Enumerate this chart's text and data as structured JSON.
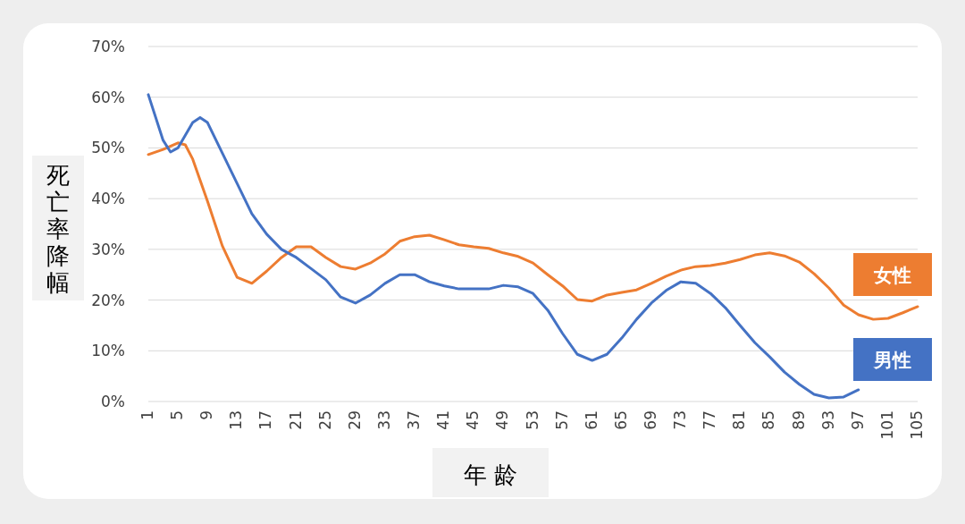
{
  "chart_data": {
    "type": "line",
    "xlabel": "年 龄",
    "ylabel": "死亡率降幅",
    "xlim": [
      1,
      105
    ],
    "xticks": [
      1,
      5,
      9,
      13,
      17,
      21,
      25,
      29,
      33,
      37,
      41,
      45,
      49,
      53,
      57,
      61,
      65,
      69,
      73,
      77,
      81,
      85,
      89,
      93,
      97,
      101,
      105
    ],
    "ylim": [
      0,
      70
    ],
    "yticks": [
      {
        "value": 0,
        "label": "0%"
      },
      {
        "value": 10,
        "label": "10%"
      },
      {
        "value": 20,
        "label": "20%"
      },
      {
        "value": 30,
        "label": "30%"
      },
      {
        "value": 40,
        "label": "40%"
      },
      {
        "value": 50,
        "label": "50%"
      },
      {
        "value": 60,
        "label": "60%"
      },
      {
        "value": 70,
        "label": "70%"
      }
    ],
    "grid": "y",
    "legend": "right",
    "marker": "none",
    "line_style": "solid",
    "series": [
      {
        "name": "女性",
        "color": "#ed7d31",
        "x": [
          1,
          3,
          5,
          6,
          7,
          9,
          11,
          13,
          15,
          17,
          19,
          21,
          23,
          25,
          27,
          29,
          31,
          33,
          35,
          37,
          39,
          41,
          43,
          45,
          47,
          49,
          51,
          53,
          55,
          57,
          59,
          61,
          63,
          65,
          67,
          69,
          71,
          73,
          75,
          77,
          79,
          81,
          83,
          85,
          87,
          89,
          91,
          93,
          95,
          97,
          99,
          101,
          103,
          105
        ],
        "values": [
          48.7,
          49.7,
          51,
          50.6,
          47.8,
          39.5,
          30.7,
          24.5,
          23.3,
          25.7,
          28.4,
          30.5,
          30.5,
          28.4,
          26.6,
          26.1,
          27.3,
          29.1,
          31.6,
          32.5,
          32.8,
          31.9,
          30.9,
          30.5,
          30.2,
          29.3,
          28.6,
          27.3,
          25,
          22.8,
          20.1,
          19.8,
          21,
          21.5,
          22,
          23.3,
          24.7,
          25.9,
          26.6,
          26.8,
          27.3,
          28,
          28.9,
          29.3,
          28.7,
          27.5,
          25.2,
          22.4,
          19,
          17.1,
          16.2,
          16.4,
          17.5,
          18.7
        ]
      },
      {
        "name": "男性",
        "color": "#4472c4",
        "x": [
          1,
          3,
          4,
          5,
          7,
          8,
          9,
          11,
          13,
          15,
          17,
          19,
          21,
          23,
          25,
          27,
          29,
          31,
          33,
          35,
          37,
          39,
          41,
          43,
          45,
          47,
          49,
          51,
          53,
          55,
          57,
          59,
          61,
          63,
          65,
          67,
          69,
          71,
          73,
          75,
          77,
          79,
          81,
          83,
          85,
          87,
          89,
          91,
          93,
          95,
          97
        ],
        "values": [
          60.5,
          51.5,
          49.2,
          50,
          55,
          56,
          55,
          49,
          43,
          37,
          33,
          30,
          28.4,
          26.2,
          24,
          20.6,
          19.4,
          21,
          23.3,
          25,
          25,
          23.6,
          22.8,
          22.2,
          22.2,
          22.2,
          22.9,
          22.6,
          21.3,
          18,
          13.4,
          9.3,
          8.1,
          9.3,
          12.5,
          16.2,
          19.4,
          21.9,
          23.6,
          23.3,
          21.3,
          18.5,
          15,
          11.6,
          8.8,
          5.8,
          3.4,
          1.4,
          0.7,
          0.9,
          2.3
        ]
      }
    ]
  }
}
